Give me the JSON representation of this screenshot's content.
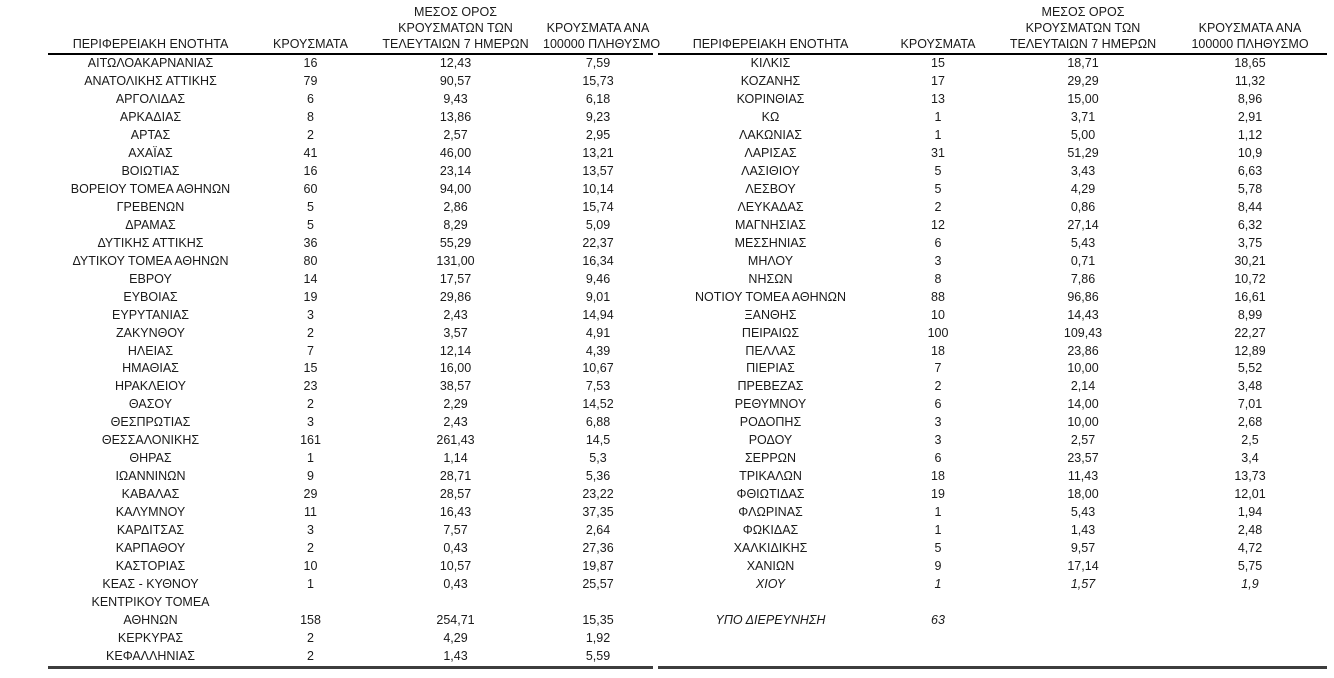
{
  "header": {
    "region": "ΠΕΡΙΦΕΡΕΙΑΚΗ ΕΝΟΤΗΤΑ",
    "cases": "ΚΡΟΥΣΜΑΤΑ",
    "avg7": [
      "ΜΕΣΟΣ ΟΡΟΣ",
      "ΚΡΟΥΣΜΑΤΩΝ ΤΩΝ",
      "ΤΕΛΕΥΤΑΙΩΝ 7 ΗΜΕΡΩΝ"
    ],
    "per100k": [
      "ΚΡΟΥΣΜΑΤΑ ΑΝΑ",
      "100000 ΠΛΗΘΥΣΜΟ"
    ]
  },
  "styles": {
    "background": "#ffffff",
    "text_color": "#1a1a1a",
    "header_rule_color": "#000000",
    "bottom_rule_color": "#3d3d3d"
  },
  "left_table": {
    "rows": [
      {
        "region": "ΑΙΤΩΛΟΑΚΑΡΝΑΝΙΑΣ",
        "cases": "16",
        "avg7": "12,43",
        "per100k": "7,59"
      },
      {
        "region": "ΑΝΑΤΟΛΙΚΗΣ ΑΤΤΙΚΗΣ",
        "cases": "79",
        "avg7": "90,57",
        "per100k": "15,73"
      },
      {
        "region": "ΑΡΓΟΛΙΔΑΣ",
        "cases": "6",
        "avg7": "9,43",
        "per100k": "6,18"
      },
      {
        "region": "ΑΡΚΑΔΙΑΣ",
        "cases": "8",
        "avg7": "13,86",
        "per100k": "9,23"
      },
      {
        "region": "ΑΡΤΑΣ",
        "cases": "2",
        "avg7": "2,57",
        "per100k": "2,95"
      },
      {
        "region": "ΑΧΑΪΑΣ",
        "cases": "41",
        "avg7": "46,00",
        "per100k": "13,21"
      },
      {
        "region": "ΒΟΙΩΤΙΑΣ",
        "cases": "16",
        "avg7": "23,14",
        "per100k": "13,57"
      },
      {
        "region": "ΒΟΡΕΙΟΥ ΤΟΜΕΑ ΑΘΗΝΩΝ",
        "cases": "60",
        "avg7": "94,00",
        "per100k": "10,14"
      },
      {
        "region": "ΓΡΕΒΕΝΩΝ",
        "cases": "5",
        "avg7": "2,86",
        "per100k": "15,74"
      },
      {
        "region": "ΔΡΑΜΑΣ",
        "cases": "5",
        "avg7": "8,29",
        "per100k": "5,09"
      },
      {
        "region": "ΔΥΤΙΚΗΣ ΑΤΤΙΚΗΣ",
        "cases": "36",
        "avg7": "55,29",
        "per100k": "22,37"
      },
      {
        "region": "ΔΥΤΙΚΟΥ ΤΟΜΕΑ ΑΘΗΝΩΝ",
        "cases": "80",
        "avg7": "131,00",
        "per100k": "16,34"
      },
      {
        "region": "ΕΒΡΟΥ",
        "cases": "14",
        "avg7": "17,57",
        "per100k": "9,46"
      },
      {
        "region": "ΕΥΒΟΙΑΣ",
        "cases": "19",
        "avg7": "29,86",
        "per100k": "9,01"
      },
      {
        "region": "ΕΥΡΥΤΑΝΙΑΣ",
        "cases": "3",
        "avg7": "2,43",
        "per100k": "14,94"
      },
      {
        "region": "ΖΑΚΥΝΘΟΥ",
        "cases": "2",
        "avg7": "3,57",
        "per100k": "4,91"
      },
      {
        "region": "ΗΛΕΙΑΣ",
        "cases": "7",
        "avg7": "12,14",
        "per100k": "4,39"
      },
      {
        "region": "ΗΜΑΘΙΑΣ",
        "cases": "15",
        "avg7": "16,00",
        "per100k": "10,67"
      },
      {
        "region": "ΗΡΑΚΛΕΙΟΥ",
        "cases": "23",
        "avg7": "38,57",
        "per100k": "7,53"
      },
      {
        "region": "ΘΑΣΟΥ",
        "cases": "2",
        "avg7": "2,29",
        "per100k": "14,52"
      },
      {
        "region": "ΘΕΣΠΡΩΤΙΑΣ",
        "cases": "3",
        "avg7": "2,43",
        "per100k": "6,88"
      },
      {
        "region": "ΘΕΣΣΑΛΟΝΙΚΗΣ",
        "cases": "161",
        "avg7": "261,43",
        "per100k": "14,5"
      },
      {
        "region": "ΘΗΡΑΣ",
        "cases": "1",
        "avg7": "1,14",
        "per100k": "5,3"
      },
      {
        "region": "ΙΩΑΝΝΙΝΩΝ",
        "cases": "9",
        "avg7": "28,71",
        "per100k": "5,36"
      },
      {
        "region": "ΚΑΒΑΛΑΣ",
        "cases": "29",
        "avg7": "28,57",
        "per100k": "23,22"
      },
      {
        "region": "ΚΑΛΥΜΝΟΥ",
        "cases": "11",
        "avg7": "16,43",
        "per100k": "37,35"
      },
      {
        "region": "ΚΑΡΔΙΤΣΑΣ",
        "cases": "3",
        "avg7": "7,57",
        "per100k": "2,64"
      },
      {
        "region": "ΚΑΡΠΑΘΟΥ",
        "cases": "2",
        "avg7": "0,43",
        "per100k": "27,36"
      },
      {
        "region": "ΚΑΣΤΟΡΙΑΣ",
        "cases": "10",
        "avg7": "10,57",
        "per100k": "19,87"
      },
      {
        "region": "ΚΕΑΣ - ΚΥΘΝΟΥ",
        "cases": "1",
        "avg7": "0,43",
        "per100k": "25,57"
      },
      {
        "region": "ΚΕΝΤΡΙΚΟΥ ΤΟΜΕΑ\nΑΘΗΝΩΝ",
        "cases": "158",
        "avg7": "254,71",
        "per100k": "15,35"
      },
      {
        "region": "ΚΕΡΚΥΡΑΣ",
        "cases": "2",
        "avg7": "4,29",
        "per100k": "1,92"
      },
      {
        "region": "ΚΕΦΑΛΛΗΝΙΑΣ",
        "cases": "2",
        "avg7": "1,43",
        "per100k": "5,59"
      }
    ]
  },
  "right_table": {
    "rows": [
      {
        "region": "ΚΙΛΚΙΣ",
        "cases": "15",
        "avg7": "18,71",
        "per100k": "18,65"
      },
      {
        "region": "ΚΟΖΑΝΗΣ",
        "cases": "17",
        "avg7": "29,29",
        "per100k": "11,32"
      },
      {
        "region": "ΚΟΡΙΝΘΙΑΣ",
        "cases": "13",
        "avg7": "15,00",
        "per100k": "8,96"
      },
      {
        "region": "ΚΩ",
        "cases": "1",
        "avg7": "3,71",
        "per100k": "2,91"
      },
      {
        "region": "ΛΑΚΩΝΙΑΣ",
        "cases": "1",
        "avg7": "5,00",
        "per100k": "1,12"
      },
      {
        "region": "ΛΑΡΙΣΑΣ",
        "cases": "31",
        "avg7": "51,29",
        "per100k": "10,9"
      },
      {
        "region": "ΛΑΣΙΘΙΟΥ",
        "cases": "5",
        "avg7": "3,43",
        "per100k": "6,63"
      },
      {
        "region": "ΛΕΣΒΟΥ",
        "cases": "5",
        "avg7": "4,29",
        "per100k": "5,78"
      },
      {
        "region": "ΛΕΥΚΑΔΑΣ",
        "cases": "2",
        "avg7": "0,86",
        "per100k": "8,44"
      },
      {
        "region": "ΜΑΓΝΗΣΙΑΣ",
        "cases": "12",
        "avg7": "27,14",
        "per100k": "6,32"
      },
      {
        "region": "ΜΕΣΣΗΝΙΑΣ",
        "cases": "6",
        "avg7": "5,43",
        "per100k": "3,75"
      },
      {
        "region": "ΜΗΛΟΥ",
        "cases": "3",
        "avg7": "0,71",
        "per100k": "30,21"
      },
      {
        "region": "ΝΗΣΩΝ",
        "cases": "8",
        "avg7": "7,86",
        "per100k": "10,72"
      },
      {
        "region": "ΝΟΤΙΟΥ ΤΟΜΕΑ ΑΘΗΝΩΝ",
        "cases": "88",
        "avg7": "96,86",
        "per100k": "16,61"
      },
      {
        "region": "ΞΑΝΘΗΣ",
        "cases": "10",
        "avg7": "14,43",
        "per100k": "8,99"
      },
      {
        "region": "ΠΕΙΡΑΙΩΣ",
        "cases": "100",
        "avg7": "109,43",
        "per100k": "22,27"
      },
      {
        "region": "ΠΕΛΛΑΣ",
        "cases": "18",
        "avg7": "23,86",
        "per100k": "12,89"
      },
      {
        "region": "ΠΙΕΡΙΑΣ",
        "cases": "7",
        "avg7": "10,00",
        "per100k": "5,52"
      },
      {
        "region": "ΠΡΕΒΕΖΑΣ",
        "cases": "2",
        "avg7": "2,14",
        "per100k": "3,48"
      },
      {
        "region": "ΡΕΘΥΜΝΟΥ",
        "cases": "6",
        "avg7": "14,00",
        "per100k": "7,01"
      },
      {
        "region": "ΡΟΔΟΠΗΣ",
        "cases": "3",
        "avg7": "10,00",
        "per100k": "2,68"
      },
      {
        "region": "ΡΟΔΟΥ",
        "cases": "3",
        "avg7": "2,57",
        "per100k": "2,5"
      },
      {
        "region": "ΣΕΡΡΩΝ",
        "cases": "6",
        "avg7": "23,57",
        "per100k": "3,4"
      },
      {
        "region": "ΤΡΙΚΑΛΩΝ",
        "cases": "18",
        "avg7": "11,43",
        "per100k": "13,73"
      },
      {
        "region": "ΦΘΙΩΤΙΔΑΣ",
        "cases": "19",
        "avg7": "18,00",
        "per100k": "12,01"
      },
      {
        "region": "ΦΛΩΡΙΝΑΣ",
        "cases": "1",
        "avg7": "5,43",
        "per100k": "1,94"
      },
      {
        "region": "ΦΩΚΙΔΑΣ",
        "cases": "1",
        "avg7": "1,43",
        "per100k": "2,48"
      },
      {
        "region": "ΧΑΛΚΙΔΙΚΗΣ",
        "cases": "5",
        "avg7": "9,57",
        "per100k": "4,72"
      },
      {
        "region": "ΧΑΝΙΩΝ",
        "cases": "9",
        "avg7": "17,14",
        "per100k": "5,75"
      },
      {
        "region": "ΧΙΟΥ",
        "cases": "1",
        "avg7": "1,57",
        "per100k": "1,9",
        "italic": true
      },
      {
        "spacer": true
      },
      {
        "region": "ΥΠΟ ΔΙΕΡΕΥΝΗΣΗ",
        "cases": "63",
        "avg7": "",
        "per100k": "",
        "italic": true
      }
    ]
  }
}
